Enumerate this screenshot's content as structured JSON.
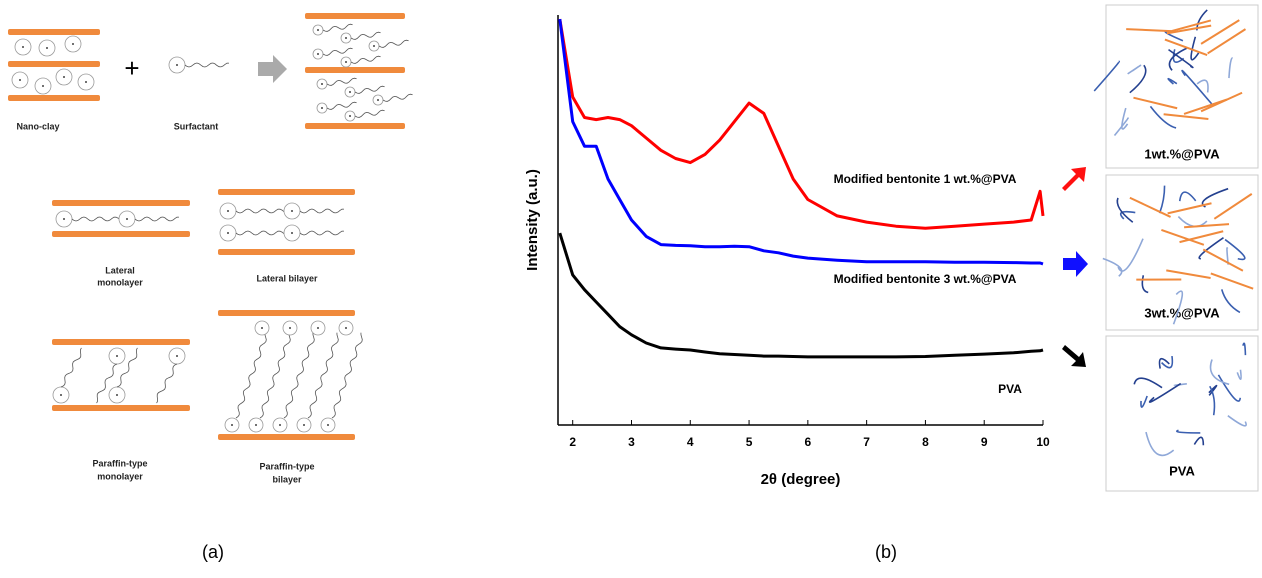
{
  "chart_data": {
    "type": "line",
    "x_label": "2θ (degree)",
    "y_label": "Intensity (a.u.)",
    "panel_label": "(b)",
    "xlim": [
      1.75,
      10
    ],
    "xticks": [
      2,
      3,
      4,
      5,
      6,
      7,
      8,
      9,
      10
    ],
    "ylim": [
      0,
      100
    ],
    "x": [
      1.78,
      2.0,
      2.2,
      2.4,
      2.6,
      2.8,
      3.0,
      3.25,
      3.5,
      3.75,
      4.0,
      4.25,
      4.5,
      4.75,
      5.0,
      5.25,
      5.5,
      5.75,
      6.0,
      6.5,
      7,
      7.5,
      8,
      8.5,
      9,
      9.5,
      9.8,
      9.95,
      10
    ],
    "series": [
      {
        "name": "Modified bentonite 1 wt.%@PVA",
        "color": "#ff0000",
        "values": [
          99,
          80,
          75,
          74.5,
          75,
          74.5,
          73,
          70,
          67,
          65,
          64,
          66,
          69.5,
          74,
          78.5,
          76,
          68,
          60,
          55,
          51,
          49.5,
          48.5,
          48,
          48.5,
          49,
          49.5,
          50,
          57,
          51
        ]
      },
      {
        "name": "Modified bentonite 3 wt.%@PVA",
        "color": "#0000ff",
        "values": [
          99,
          74,
          68,
          68,
          60,
          55,
          50,
          46,
          44,
          43.8,
          43.7,
          43.5,
          43.5,
          43.6,
          43.5,
          42.5,
          42,
          41.2,
          40.7,
          40.2,
          39.8,
          39.8,
          39.8,
          39.7,
          39.7,
          39.6,
          39.5,
          39.5,
          39.3
        ]
      },
      {
        "name": "PVA",
        "color": "#000000",
        "values": [
          46.8,
          36.6,
          33,
          30,
          27,
          24,
          22,
          20,
          18.8,
          18.5,
          18.3,
          17.8,
          17.4,
          17.2,
          17,
          16.8,
          16.8,
          16.7,
          16.6,
          16.6,
          16.6,
          16.6,
          16.7,
          17,
          17.3,
          17.6,
          18,
          18.1,
          18.3
        ]
      }
    ]
  },
  "schematic": {
    "panel_label": "(a)",
    "plus": "+",
    "nano_clay": "Nano-clay",
    "surfactant": "Surfactant",
    "lateral_monolayer": [
      "Lateral",
      "monolayer"
    ],
    "lateral_bilayer": "Lateral bilayer",
    "paraffin_monolayer": [
      "Paraffin-type",
      "monolayer"
    ],
    "paraffin_bilayer": [
      "Paraffin-type",
      "bilayer"
    ]
  },
  "insets": [
    "1wt.%@PVA",
    "3wt.%@PVA",
    "PVA"
  ]
}
